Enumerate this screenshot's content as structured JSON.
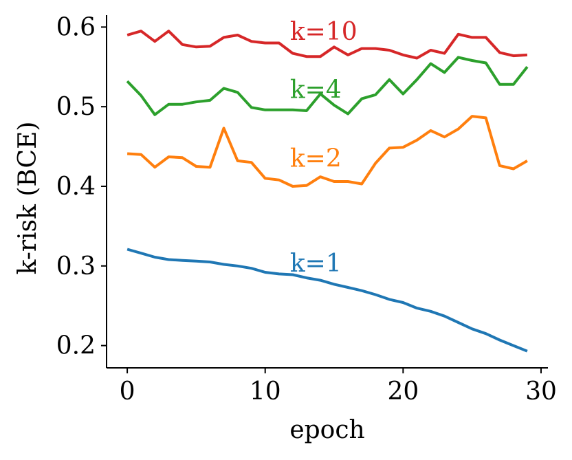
{
  "chart_data": {
    "type": "line",
    "title": "",
    "xlabel": "epoch",
    "ylabel": "k-risk (BCE)",
    "xlim": [
      -1.5,
      30.5
    ],
    "ylim": [
      0.172,
      0.615
    ],
    "xticks": [
      0,
      10,
      20,
      30
    ],
    "xtick_labels": [
      "0",
      "10",
      "20",
      "30"
    ],
    "yticks": [
      0.2,
      0.3,
      0.4,
      0.5,
      0.6
    ],
    "ytick_labels": [
      "0.2",
      "0.3",
      "0.4",
      "0.5",
      "0.6"
    ],
    "grid": false,
    "x": [
      0,
      1,
      2,
      3,
      4,
      5,
      6,
      7,
      8,
      9,
      10,
      11,
      12,
      13,
      14,
      15,
      16,
      17,
      18,
      19,
      20,
      21,
      22,
      23,
      24,
      25,
      26,
      27,
      28,
      29
    ],
    "series": [
      {
        "name": "k=1",
        "label": "k=1",
        "color": "#1f77b4",
        "label_pos": [
          12,
          0.304
        ],
        "values": [
          0.321,
          0.316,
          0.311,
          0.308,
          0.307,
          0.306,
          0.305,
          0.302,
          0.3,
          0.297,
          0.292,
          0.29,
          0.289,
          0.285,
          0.282,
          0.277,
          0.273,
          0.269,
          0.264,
          0.258,
          0.254,
          0.247,
          0.243,
          0.237,
          0.229,
          0.221,
          0.215,
          0.207,
          0.2,
          0.193
        ]
      },
      {
        "name": "k=2",
        "label": "k=2",
        "color": "#ff7f0e",
        "label_pos": [
          12,
          0.436
        ],
        "values": [
          0.441,
          0.44,
          0.424,
          0.437,
          0.436,
          0.425,
          0.424,
          0.473,
          0.432,
          0.43,
          0.41,
          0.408,
          0.4,
          0.401,
          0.412,
          0.406,
          0.406,
          0.403,
          0.429,
          0.448,
          0.449,
          0.458,
          0.47,
          0.462,
          0.472,
          0.488,
          0.486,
          0.426,
          0.422,
          0.432
        ]
      },
      {
        "name": "k=4",
        "label": "k=4",
        "color": "#2ca02c",
        "label_pos": [
          12,
          0.522
        ],
        "values": [
          0.532,
          0.514,
          0.49,
          0.503,
          0.503,
          0.506,
          0.508,
          0.523,
          0.518,
          0.499,
          0.496,
          0.496,
          0.496,
          0.495,
          0.516,
          0.502,
          0.491,
          0.51,
          0.515,
          0.534,
          0.516,
          0.534,
          0.554,
          0.543,
          0.562,
          0.558,
          0.555,
          0.528,
          0.528,
          0.55
        ]
      },
      {
        "name": "k=10",
        "label": "k=10",
        "color": "#d62728",
        "label_pos": [
          12,
          0.595
        ],
        "values": [
          0.59,
          0.595,
          0.582,
          0.595,
          0.578,
          0.575,
          0.576,
          0.587,
          0.59,
          0.582,
          0.58,
          0.58,
          0.567,
          0.563,
          0.563,
          0.575,
          0.565,
          0.573,
          0.573,
          0.571,
          0.565,
          0.561,
          0.571,
          0.567,
          0.591,
          0.587,
          0.587,
          0.568,
          0.564,
          0.565
        ]
      }
    ]
  }
}
